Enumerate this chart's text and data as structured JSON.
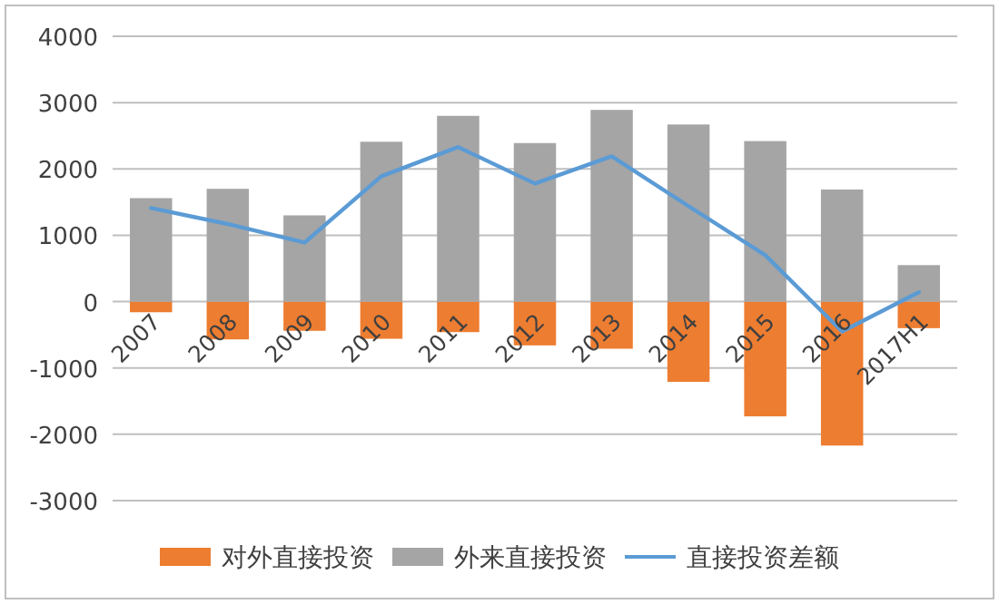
{
  "chart_data": {
    "type": "bar",
    "stacked": true,
    "categories": [
      "2007",
      "2008",
      "2009",
      "2010",
      "2011",
      "2012",
      "2013",
      "2014",
      "2015",
      "2016",
      "2017H1"
    ],
    "series": [
      {
        "name": "对外直接投资",
        "color": "#ed7d31",
        "values": [
          -160,
          -570,
          -440,
          -560,
          -460,
          -660,
          -710,
          -1210,
          -1730,
          -2170,
          -400
        ]
      },
      {
        "name": "外来直接投资",
        "color": "#a5a5a5",
        "values": [
          1560,
          1700,
          1300,
          2410,
          2800,
          2390,
          2890,
          2670,
          2420,
          1690,
          550
        ]
      },
      {
        "name": "直接投资差额",
        "type": "line",
        "color": "#5b9bd5",
        "values": [
          1410,
          1170,
          890,
          1890,
          2330,
          1780,
          2190,
          1440,
          700,
          -450,
          140
        ]
      }
    ],
    "ylim": [
      -3000,
      4000
    ],
    "yticks": [
      -3000,
      -2000,
      -1000,
      0,
      1000,
      2000,
      3000,
      4000
    ],
    "grid": "y",
    "legend": "bottom"
  }
}
